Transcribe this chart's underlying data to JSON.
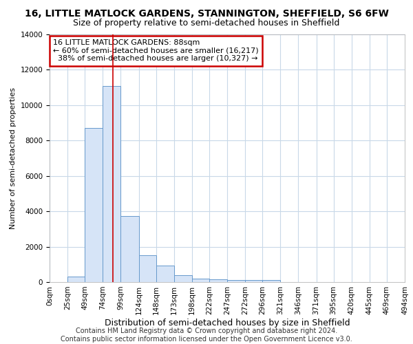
{
  "title": "16, LITTLE MATLOCK GARDENS, STANNINGTON, SHEFFIELD, S6 6FW",
  "subtitle": "Size of property relative to semi-detached houses in Sheffield",
  "xlabel": "Distribution of semi-detached houses by size in Sheffield",
  "ylabel": "Number of semi-detached properties",
  "property_size": 88,
  "pct_smaller": 60,
  "count_smaller": 16217,
  "pct_larger": 38,
  "count_larger": 10327,
  "annotation_title": "16 LITTLE MATLOCK GARDENS: 88sqm",
  "bin_edges": [
    0,
    25,
    49,
    74,
    99,
    124,
    148,
    173,
    198,
    222,
    247,
    272,
    296,
    321,
    346,
    371,
    395,
    420,
    445,
    469,
    494
  ],
  "bin_heights": [
    0,
    300,
    8700,
    11100,
    3750,
    1500,
    950,
    400,
    200,
    150,
    100,
    100,
    100,
    0,
    0,
    0,
    0,
    0,
    0,
    0
  ],
  "bar_color": "#d6e4f7",
  "bar_edge_color": "#6699cc",
  "grid_color": "#c8d8e8",
  "vline_color": "#cc0000",
  "box_edge_color": "#cc0000",
  "title_fontsize": 10,
  "subtitle_fontsize": 9,
  "xlabel_fontsize": 9,
  "ylabel_fontsize": 8,
  "tick_fontsize": 7.5,
  "annotation_fontsize": 8,
  "ylim": [
    0,
    14000
  ],
  "footer_text": "Contains HM Land Registry data © Crown copyright and database right 2024.\nContains public sector information licensed under the Open Government Licence v3.0.",
  "footer_fontsize": 7
}
